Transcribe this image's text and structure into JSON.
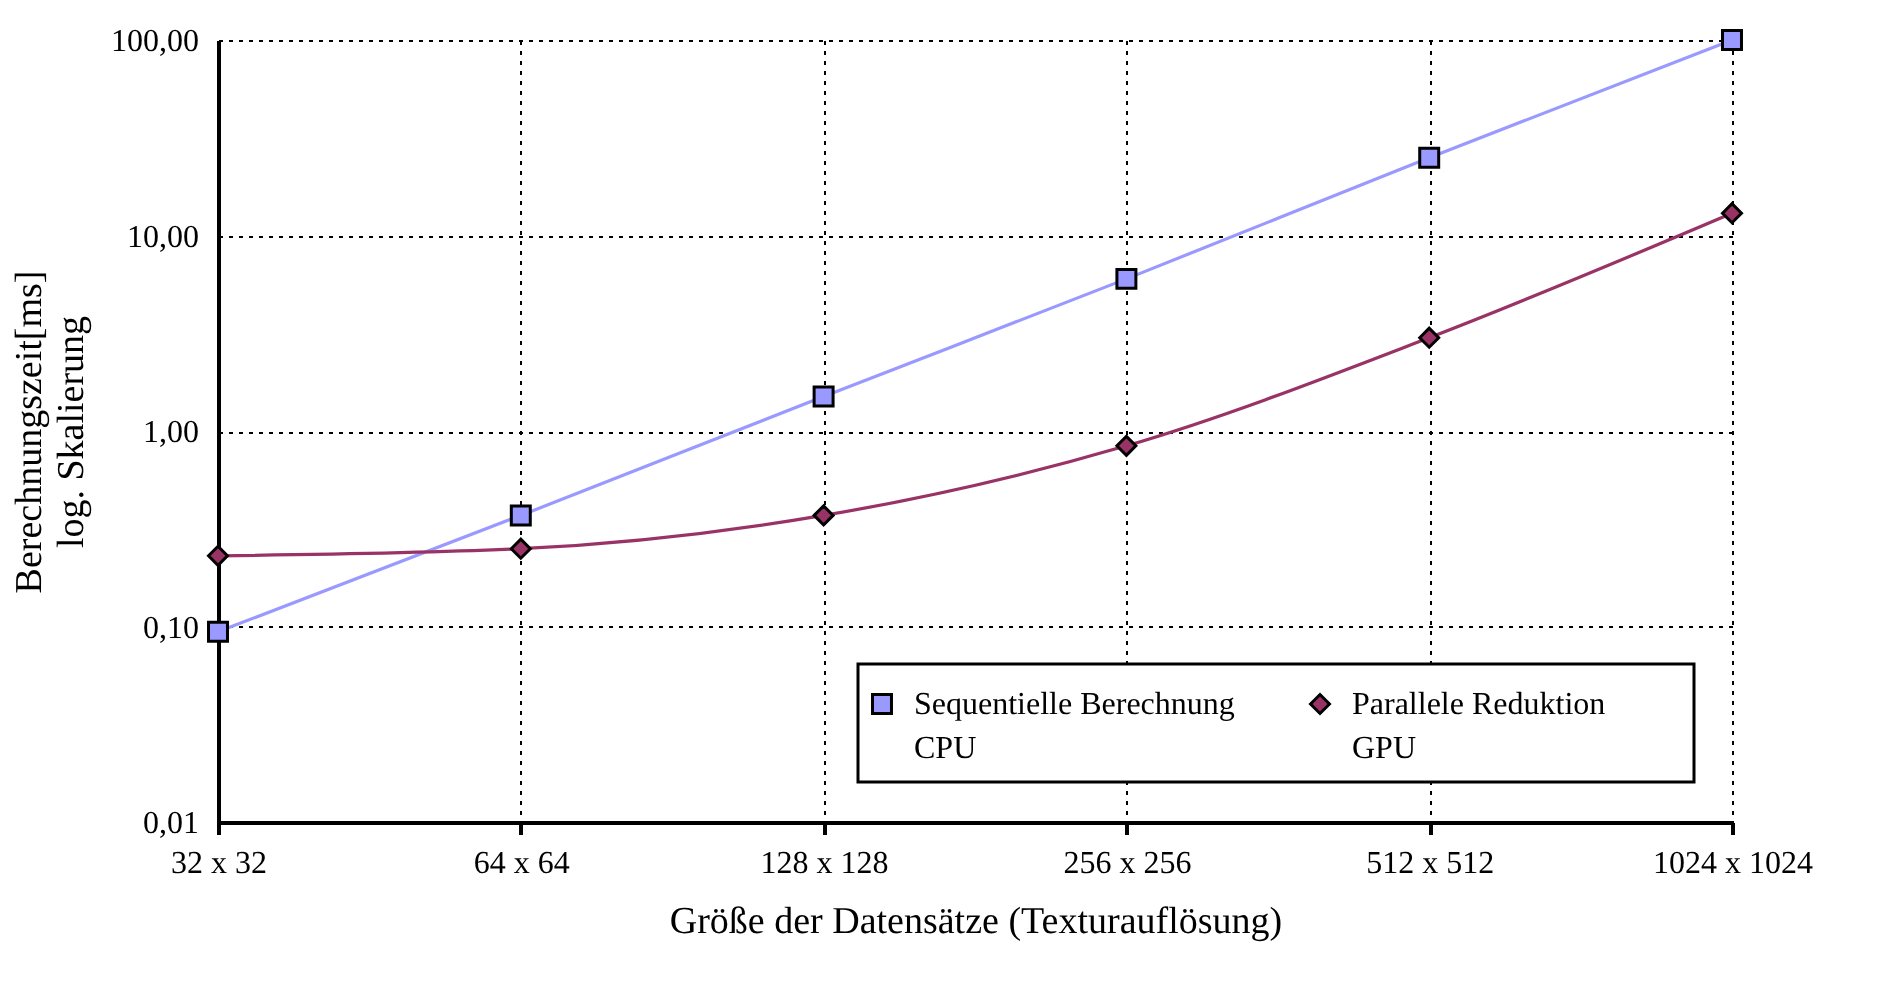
{
  "chart_data": {
    "type": "line",
    "xlabel": "Größe der Datensätze (Texturauflösung)",
    "ylabel": "Berechnungszeit[ms]\nlog. Skalierung",
    "categories": [
      "32 x 32",
      "64 x 64",
      "128 x 128",
      "256 x 256",
      "512 x 512",
      "1024 x 1024"
    ],
    "series": [
      {
        "name": "Sequentielle Berechnung\nCPU",
        "color": "#9999ff",
        "marker": "square",
        "values": [
          0.094,
          0.37,
          1.5,
          6.0,
          25,
          100
        ]
      },
      {
        "name": "Parallele Reduktion\nGPU",
        "color": "#993366",
        "marker": "diamond",
        "values": [
          0.23,
          0.25,
          0.37,
          0.84,
          3.0,
          13
        ]
      }
    ],
    "log": "y",
    "ylim": [
      0.01,
      100
    ],
    "yticks": [
      {
        "value": 0.01,
        "label": "0,01"
      },
      {
        "value": 0.1,
        "label": "0,10"
      },
      {
        "value": 1,
        "label": "1,00"
      },
      {
        "value": 10,
        "label": "10,00"
      },
      {
        "value": 100,
        "label": "100,00"
      }
    ],
    "grid": true,
    "legend": "bottom right",
    "line_style": "solid"
  }
}
